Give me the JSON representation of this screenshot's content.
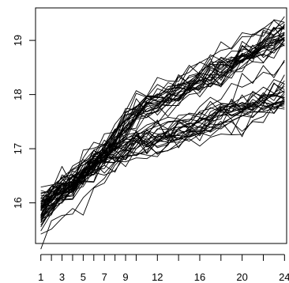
{
  "chart_data": {
    "type": "line",
    "title": "",
    "xlabel": "",
    "ylabel": "",
    "x": [
      1,
      2,
      3,
      4,
      5,
      6,
      7,
      8,
      9,
      10,
      11,
      12,
      13,
      14,
      15,
      16,
      17,
      18,
      19,
      20,
      21,
      22,
      23,
      24
    ],
    "xlim": [
      0.5,
      24.2
    ],
    "ylim": [
      15.25,
      19.6
    ],
    "x_ticks": [
      1,
      2,
      3,
      4,
      5,
      6,
      7,
      8,
      9,
      10,
      12,
      14,
      16,
      18,
      20,
      22,
      24
    ],
    "x_tick_labels": [
      "1",
      "3",
      "5",
      "7",
      "9",
      "12",
      "16",
      "20",
      "24"
    ],
    "y_ticks": [
      16,
      17,
      18,
      19
    ],
    "y_tick_labels": [
      "16",
      "17",
      "18",
      "19"
    ],
    "grid": false,
    "legend": "none",
    "line_color": "#000000",
    "groups": [
      {
        "count": 30,
        "mean": [
          15.8,
          16.0,
          16.15,
          16.3,
          16.5,
          16.7,
          16.9,
          17.15,
          17.4,
          17.6,
          17.75,
          17.85,
          17.95,
          18.05,
          18.15,
          18.25,
          18.35,
          18.45,
          18.55,
          18.65,
          18.75,
          18.85,
          18.95,
          19.05
        ],
        "spread": 0.18
      },
      {
        "count": 25,
        "mean": [
          15.85,
          16.05,
          16.2,
          16.35,
          16.5,
          16.65,
          16.75,
          16.85,
          16.95,
          17.05,
          17.1,
          17.15,
          17.2,
          17.25,
          17.3,
          17.4,
          17.45,
          17.55,
          17.6,
          17.65,
          17.75,
          17.8,
          17.85,
          17.95
        ],
        "spread": 0.18
      }
    ]
  }
}
